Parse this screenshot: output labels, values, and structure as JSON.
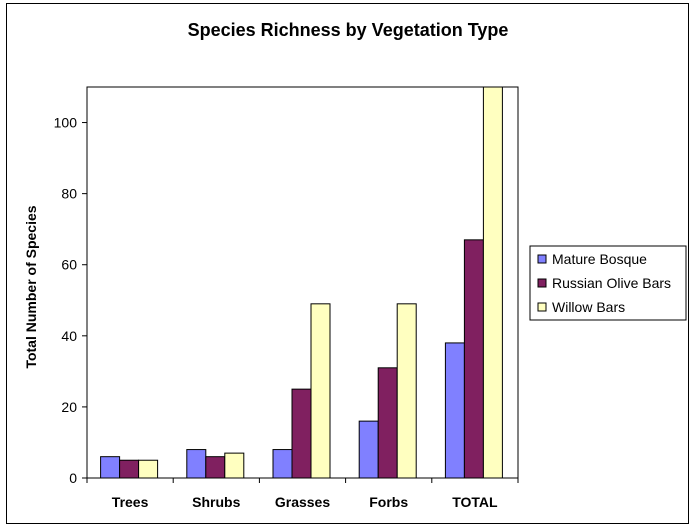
{
  "chart_data": {
    "type": "bar",
    "title": "Species Richness by Vegetation Type",
    "xlabel": "",
    "ylabel": "Total Number of Species",
    "categories": [
      "Trees",
      "Shrubs",
      "Grasses",
      "Forbs",
      "TOTAL"
    ],
    "ylim": [
      0,
      110
    ],
    "yticks": [
      0,
      20,
      40,
      60,
      80,
      100
    ],
    "grid": false,
    "legend_position": "right",
    "series": [
      {
        "name": "Mature Bosque",
        "color": "#8080FF",
        "values": [
          6,
          8,
          8,
          16,
          38
        ]
      },
      {
        "name": "Russian Olive Bars",
        "color": "#802060",
        "values": [
          5,
          6,
          25,
          31,
          67
        ]
      },
      {
        "name": "Willow Bars",
        "color": "#FFFFC0",
        "values": [
          5,
          7,
          49,
          49,
          110
        ]
      }
    ]
  }
}
